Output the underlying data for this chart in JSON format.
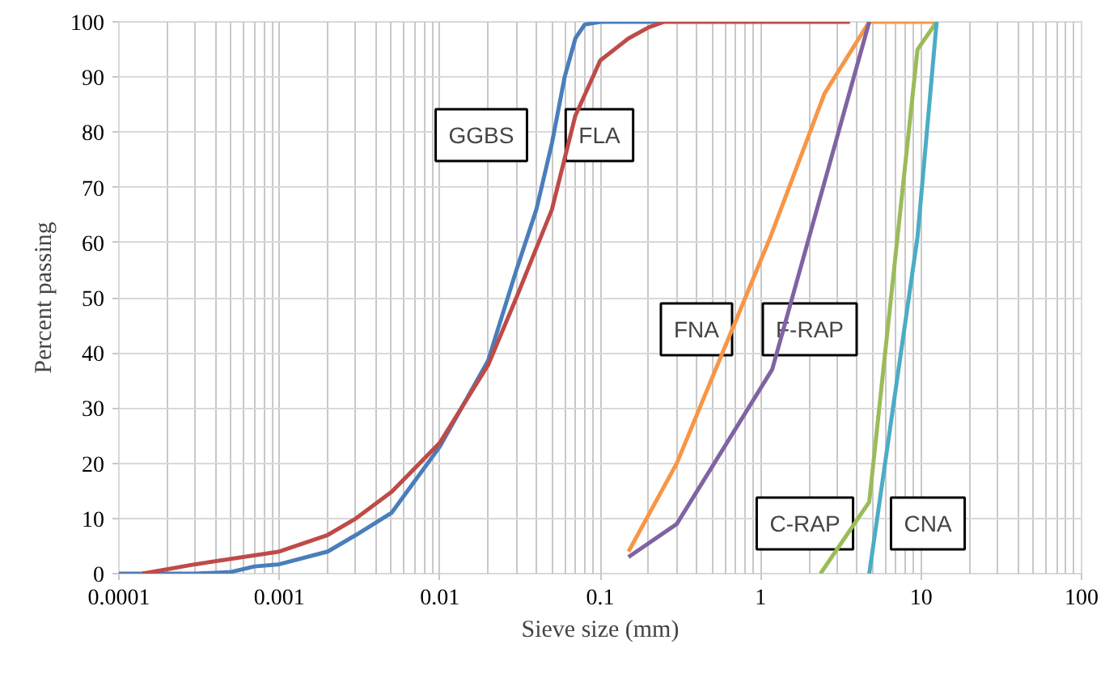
{
  "chart_data": {
    "type": "line",
    "xlabel": "Sieve size (mm)",
    "ylabel": "Percent passing",
    "log": "x",
    "xlim": [
      0.0001,
      100
    ],
    "xticks": [
      0.0001,
      0.001,
      0.01,
      0.1,
      1,
      10,
      100
    ],
    "ylim": [
      0,
      100
    ],
    "yticks": [
      0,
      10,
      20,
      30,
      40,
      50,
      60,
      70,
      80,
      90,
      100
    ],
    "grid": true,
    "marker": "none",
    "line_style": "solid",
    "series": [
      {
        "color": "#4a7ebb",
        "x": [
          0.0001,
          0.0003,
          0.0005,
          0.0007,
          0.001,
          0.002,
          0.003,
          0.005,
          0.01,
          0.02,
          0.03,
          0.04,
          0.05,
          0.06,
          0.07,
          0.08,
          0.1,
          0.25
        ],
        "values": [
          0,
          0,
          0.3,
          1.3,
          1.7,
          4,
          7,
          11,
          23,
          38.6,
          55,
          66,
          78,
          90,
          97,
          99.5,
          100,
          100
        ]
      },
      {
        "color": "#be4b48",
        "x": [
          0.00014,
          0.0003,
          0.001,
          0.002,
          0.003,
          0.005,
          0.01,
          0.02,
          0.03,
          0.05,
          0.07,
          0.1,
          0.15,
          0.2,
          0.25,
          3.6
        ],
        "values": [
          0,
          1.7,
          4,
          7,
          10,
          14.8,
          23.7,
          37.8,
          50,
          66,
          83,
          93,
          97,
          99,
          100,
          100
        ]
      },
      {
        "color": "#f79646",
        "x": [
          0.15,
          0.3,
          1.15,
          2.5,
          4.75,
          12.5
        ],
        "values": [
          4,
          20,
          61,
          87,
          100,
          100
        ]
      },
      {
        "color": "#7f63a2",
        "x": [
          0.15,
          0.3,
          1.18,
          4.75
        ],
        "values": [
          3,
          9,
          37,
          100
        ]
      },
      {
        "color": "#9bbb59",
        "x": [
          2.36,
          4.75,
          9.5,
          12.5
        ],
        "values": [
          0,
          13,
          95,
          100
        ]
      },
      {
        "color": "#4bacc6",
        "x": [
          4.75,
          9.5,
          12.5
        ],
        "values": [
          0,
          61,
          100
        ]
      }
    ],
    "annotations": [
      "GGBS",
      "FLA",
      "FNA",
      "F-RAP",
      "C-RAP",
      "CNA"
    ]
  }
}
